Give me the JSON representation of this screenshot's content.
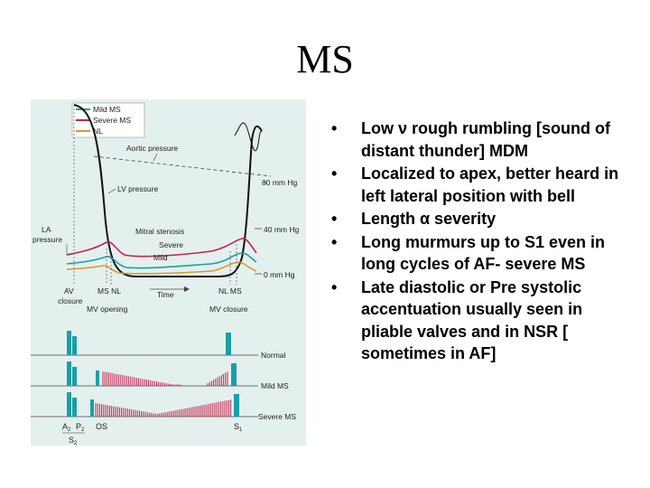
{
  "slide": {
    "title": "MS"
  },
  "figure": {
    "legend": [
      {
        "label": "Mild MS",
        "color": "#1a9fa6"
      },
      {
        "label": "Severe MS",
        "color": "#c4224f"
      },
      {
        "label": "NL",
        "color": "#d99a2b"
      }
    ],
    "labels": {
      "aortic_pressure": "Aortic pressure",
      "lv_pressure": "LV pressure",
      "mitral_stenosis": "Mitral stenosis",
      "severe": "Severe",
      "mild": "Mild",
      "la_1": "LA",
      "la_2": "pressure",
      "p80": "80 mm Hg",
      "p40": "40 mm Hg",
      "p0": "0 mm Hg",
      "av_1": "AV",
      "av_2": "closure",
      "ms_nl": "MS NL",
      "time": "Time",
      "nl_ms": "NL MS",
      "mv_opening": "MV opening",
      "mv_closure": "MV closure",
      "normal": "Normal",
      "mild_ms": "Mild MS",
      "severe_ms": "Severe MS",
      "a2": "A",
      "a2_sub": "2",
      "p2": "P",
      "p2_sub": "2",
      "s2": "S",
      "s2_sub": "2",
      "os": "OS",
      "s1": "S",
      "s1_sub": "1"
    },
    "colors": {
      "background": "#e4f0ee",
      "murmur": "#c4224f",
      "sound": "#1a9fa6",
      "curve": "#111111"
    }
  },
  "bullets": [
    {
      "marker": "•",
      "text": "Low ν rough rumbling [sound of distant thunder] MDM"
    },
    {
      "marker": "•",
      "text": "Localized to apex, better heard in left lateral position with bell"
    },
    {
      "marker": "•",
      "text": "Length α severity"
    },
    {
      "marker": "•",
      "text": "Long murmurs up to S1 even in long cycles of AF- severe MS"
    },
    {
      "marker": "•",
      "text": "Late diastolic or Pre systolic accentuation usually seen in pliable valves and in NSR [ sometimes in AF]"
    }
  ]
}
